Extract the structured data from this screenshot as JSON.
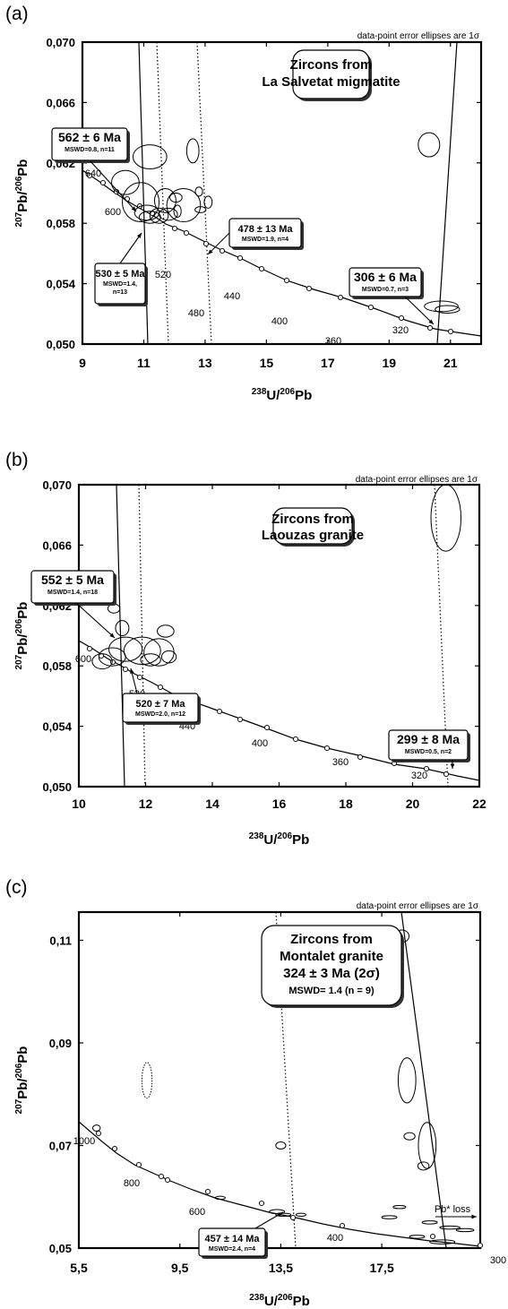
{
  "chart_data": [
    {
      "type": "scatter",
      "panel_label": "(a)",
      "note": "data-point error ellipses are 1σ",
      "title_lines": [
        "Zircons from",
        "La Salvetat migmatite"
      ],
      "ylabel": {
        "sup": "207",
        "base": "Pb/",
        "sup2": "206",
        "base2": "Pb"
      },
      "xlabel": {
        "sup": "238",
        "base": "U/",
        "sup2": "206",
        "base2": "Pb"
      },
      "xlim": [
        9,
        22
      ],
      "ylim": [
        0.05,
        0.07
      ],
      "xticks": [
        9,
        11,
        13,
        15,
        17,
        19,
        21
      ],
      "xtick_labels": [
        "9",
        "11",
        "13",
        "15",
        "17",
        "19",
        "21"
      ],
      "yticks": [
        0.05,
        0.054,
        0.058,
        0.062,
        0.066,
        0.07
      ],
      "ytick_labels": [
        "0,050",
        "0,054",
        "0,058",
        "0,062",
        "0,066",
        "0,070"
      ],
      "concordia_labels": [
        "640",
        "600",
        "520",
        "480",
        "440",
        "400",
        "360",
        "320"
      ],
      "ages": [
        {
          "text": "562 ± 6 Ma",
          "detail": "MSWD=0.8, n=11"
        },
        {
          "text": "530 ± 5 Ma",
          "detail_lines": [
            "MSWD=1.4,",
            "n=13"
          ]
        },
        {
          "text": "478 ± 13 Ma",
          "detail": "MSWD=1.9, n=4"
        },
        {
          "text": "306 ± 6 Ma",
          "detail": "MSWD=0.7, n=3"
        }
      ],
      "ellipses": [
        {
          "x": 11.2,
          "y": 0.0624,
          "rx": 0.55,
          "ry": 0.0008
        },
        {
          "x": 12.6,
          "y": 0.0628,
          "rx": 0.2,
          "ry": 0.0008
        },
        {
          "x": 20.3,
          "y": 0.0632,
          "rx": 0.35,
          "ry": 0.0008
        },
        {
          "x": 10.4,
          "y": 0.0607,
          "rx": 0.45,
          "ry": 0.0008
        },
        {
          "x": 10.9,
          "y": 0.0594,
          "rx": 0.6,
          "ry": 0.0013
        },
        {
          "x": 11.1,
          "y": 0.0587,
          "rx": 0.4,
          "ry": 0.0005
        },
        {
          "x": 11.2,
          "y": 0.0584,
          "rx": 0.35,
          "ry": 0.0004
        },
        {
          "x": 11.5,
          "y": 0.0585,
          "rx": 0.3,
          "ry": 0.0005
        },
        {
          "x": 11.8,
          "y": 0.0586,
          "rx": 0.3,
          "ry": 0.0004
        },
        {
          "x": 11.7,
          "y": 0.0595,
          "rx": 0.35,
          "ry": 0.0008
        },
        {
          "x": 12.3,
          "y": 0.0592,
          "rx": 0.55,
          "ry": 0.0011
        },
        {
          "x": 12.05,
          "y": 0.0597,
          "rx": 0.2,
          "ry": 0.0003
        },
        {
          "x": 12.1,
          "y": 0.0588,
          "rx": 0.12,
          "ry": 0.0004
        },
        {
          "x": 12.8,
          "y": 0.0601,
          "rx": 0.12,
          "ry": 0.0003
        },
        {
          "x": 13.1,
          "y": 0.0594,
          "rx": 0.13,
          "ry": 0.0004
        },
        {
          "x": 12.85,
          "y": 0.0589,
          "rx": 0.18,
          "ry": 0.0002
        },
        {
          "x": 20.7,
          "y": 0.0525,
          "rx": 0.55,
          "ry": 0.00035
        },
        {
          "x": 20.9,
          "y": 0.0523,
          "rx": 0.4,
          "ry": 0.00025
        }
      ]
    },
    {
      "type": "scatter",
      "panel_label": "(b)",
      "note": "data-point error ellipses are 1σ",
      "title_lines": [
        "Zircons from",
        "Laouzas granite"
      ],
      "ylabel": {
        "sup": "207",
        "base": "Pb/",
        "sup2": "206",
        "base2": "Pb"
      },
      "xlabel": {
        "sup": "238",
        "base": "U/",
        "sup2": "206",
        "base2": "Pb"
      },
      "xlim": [
        10,
        22
      ],
      "ylim": [
        0.05,
        0.07
      ],
      "xticks": [
        10,
        12,
        14,
        16,
        18,
        20,
        22
      ],
      "xtick_labels": [
        "10",
        "12",
        "14",
        "16",
        "18",
        "20",
        "22"
      ],
      "yticks": [
        0.05,
        0.054,
        0.058,
        0.062,
        0.066,
        0.07
      ],
      "ytick_labels": [
        "0,050",
        "0,054",
        "0,058",
        "0,062",
        "0,066",
        "0,070"
      ],
      "concordia_labels": [
        "600",
        "520",
        "480",
        "440",
        "400",
        "360",
        "320"
      ],
      "ages": [
        {
          "text": "552 ± 5 Ma",
          "detail": "MSWD=1.4, n=18"
        },
        {
          "text": "520 ± 7 Ma",
          "detail": "MSWD=2.0, n=12"
        },
        {
          "text": "299 ± 8 Ma",
          "detail": "MSWD=0.5, n=2"
        }
      ],
      "ellipses": [
        {
          "x": 21.0,
          "y": 0.0678,
          "rx": 0.45,
          "ry": 0.0022
        },
        {
          "x": 11.05,
          "y": 0.0618,
          "rx": 0.18,
          "ry": 0.0003
        },
        {
          "x": 11.3,
          "y": 0.0605,
          "rx": 0.2,
          "ry": 0.0005
        },
        {
          "x": 12.6,
          "y": 0.0603,
          "rx": 0.25,
          "ry": 0.0004
        },
        {
          "x": 11.4,
          "y": 0.0591,
          "rx": 0.5,
          "ry": 0.0008
        },
        {
          "x": 11.9,
          "y": 0.059,
          "rx": 0.55,
          "ry": 0.0009
        },
        {
          "x": 12.4,
          "y": 0.0589,
          "rx": 0.45,
          "ry": 0.0009
        },
        {
          "x": 11.0,
          "y": 0.0586,
          "rx": 0.4,
          "ry": 0.0006
        },
        {
          "x": 10.7,
          "y": 0.0583,
          "rx": 0.3,
          "ry": 0.0005
        },
        {
          "x": 12.15,
          "y": 0.0584,
          "rx": 0.3,
          "ry": 0.0004
        },
        {
          "x": 12.7,
          "y": 0.0586,
          "rx": 0.22,
          "ry": 0.0004
        },
        {
          "x": 20.8,
          "y": 0.0528,
          "rx": 0.55,
          "ry": 0.0004
        },
        {
          "x": 21.1,
          "y": 0.0527,
          "rx": 0.35,
          "ry": 0.0003
        }
      ]
    },
    {
      "type": "scatter",
      "panel_label": "(c)",
      "note": "data-point error ellipses are 1σ",
      "title_lines": [
        "Zircons from",
        "Montalet granite",
        "324 ± 3 Ma (2σ)",
        "MSWD= 1.4 (n = 9)"
      ],
      "ylabel": {
        "sup": "207",
        "base": "Pb/",
        "sup2": "206",
        "base2": "Pb"
      },
      "xlabel": {
        "sup": "238",
        "base": "U/",
        "sup2": "206",
        "base2": "Pb"
      },
      "xlim": [
        5.5,
        21.4
      ],
      "ylim": [
        0.05,
        0.1155
      ],
      "xticks": [
        5.5,
        9.5,
        13.5,
        17.5
      ],
      "xtick_labels": [
        "5,5",
        "9,5",
        "13,5",
        "17,5"
      ],
      "yticks": [
        0.05,
        0.07,
        0.09,
        0.11
      ],
      "ytick_labels": [
        "0,05",
        "0,07",
        "0,09",
        "0,11"
      ],
      "concordia_labels": [
        "1000",
        "800",
        "600",
        "400",
        "300"
      ],
      "ages": [
        {
          "text": "457 ± 14 Ma",
          "detail": "MSWD=2.4, n=4"
        }
      ],
      "annotation": "Pb* loss",
      "ellipses": [
        {
          "x": 18.3,
          "y": 0.1108,
          "rx": 0.28,
          "ry": 0.0012,
          "dashed": false
        },
        {
          "x": 18.5,
          "y": 0.0827,
          "rx": 0.35,
          "ry": 0.0044,
          "dashed": false
        },
        {
          "x": 19.3,
          "y": 0.07,
          "rx": 0.35,
          "ry": 0.0045,
          "dashed": false
        },
        {
          "x": 18.6,
          "y": 0.0718,
          "rx": 0.22,
          "ry": 0.0007,
          "dashed": false
        },
        {
          "x": 19.15,
          "y": 0.066,
          "rx": 0.22,
          "ry": 0.0008,
          "dashed": false
        },
        {
          "x": 13.5,
          "y": 0.07,
          "rx": 0.2,
          "ry": 0.0007,
          "dashed": false
        },
        {
          "x": 8.2,
          "y": 0.0827,
          "rx": 0.2,
          "ry": 0.0035,
          "dashed": true
        },
        {
          "x": 6.2,
          "y": 0.0734,
          "rx": 0.15,
          "ry": 0.0006,
          "dashed": false
        },
        {
          "x": 11.1,
          "y": 0.0598,
          "rx": 0.2,
          "ry": 0.0003,
          "dashed": false
        },
        {
          "x": 13.35,
          "y": 0.0571,
          "rx": 0.3,
          "ry": 0.0004,
          "dashed": false
        },
        {
          "x": 13.6,
          "y": 0.0565,
          "rx": 0.3,
          "ry": 0.0003,
          "dashed": false
        },
        {
          "x": 14.3,
          "y": 0.0565,
          "rx": 0.2,
          "ry": 0.0003,
          "dashed": false
        },
        {
          "x": 17.8,
          "y": 0.056,
          "rx": 0.3,
          "ry": 0.0003,
          "dashed": false
        },
        {
          "x": 18.2,
          "y": 0.058,
          "rx": 0.25,
          "ry": 0.0003,
          "dashed": false
        },
        {
          "x": 19.4,
          "y": 0.055,
          "rx": 0.3,
          "ry": 0.0003,
          "dashed": false
        },
        {
          "x": 20.2,
          "y": 0.054,
          "rx": 0.4,
          "ry": 0.0003,
          "dashed": false
        },
        {
          "x": 20.8,
          "y": 0.0535,
          "rx": 0.35,
          "ry": 0.0003,
          "dashed": false
        },
        {
          "x": 18.9,
          "y": 0.0522,
          "rx": 0.3,
          "ry": 0.0003,
          "dashed": false
        },
        {
          "x": 19.9,
          "y": 0.0512,
          "rx": 0.5,
          "ry": 0.0004,
          "dashed": false
        }
      ]
    }
  ]
}
